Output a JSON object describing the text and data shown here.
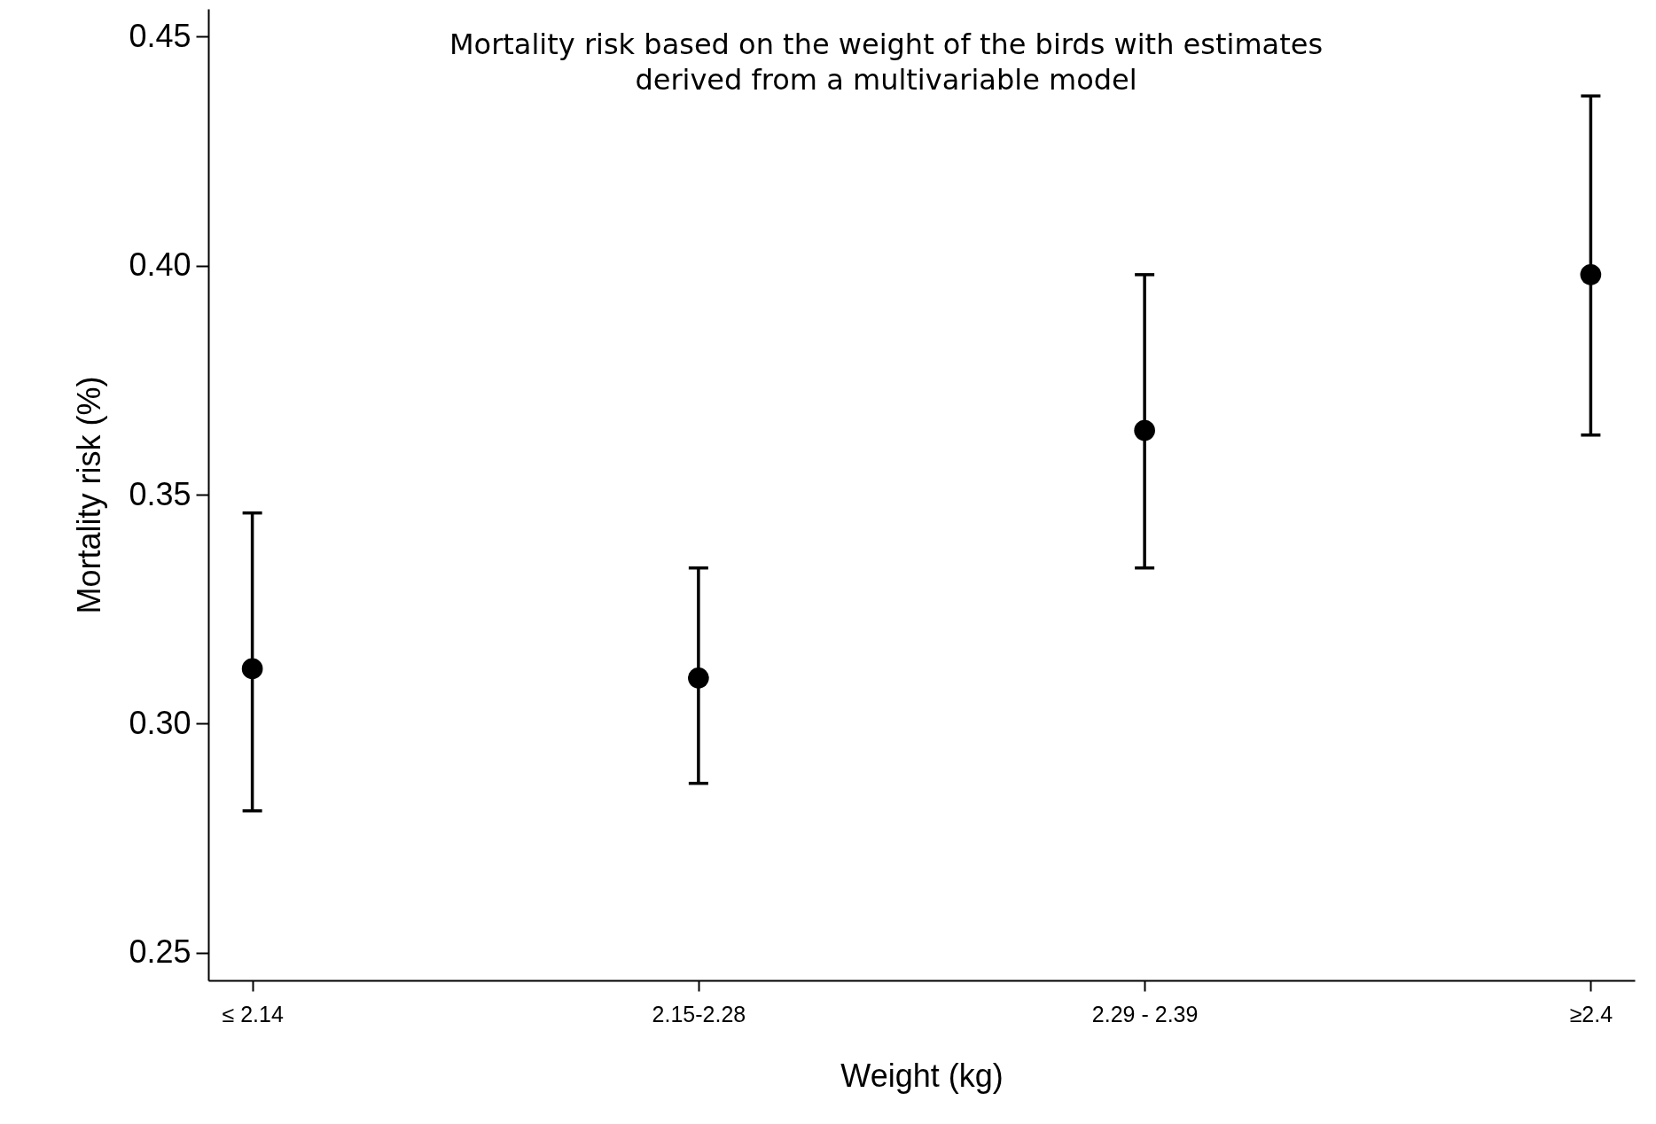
{
  "chart_data": {
    "type": "scatter",
    "title": "Mortality risk based on the weight of the birds with estimates\nderived from a multivariable model",
    "xlabel": "Weight (kg)",
    "ylabel": "Mortality risk (%)",
    "categories": [
      "≤ 2.14",
      "2.15-2.28",
      "2.29 - 2.39",
      "≥2.4"
    ],
    "series": [
      {
        "color": "#000000",
        "values": [
          0.312,
          0.31,
          0.364,
          0.398
        ],
        "errors": [
          [
            0.281,
            0.346
          ],
          [
            0.287,
            0.334
          ],
          [
            0.334,
            0.398
          ],
          [
            0.363,
            0.437
          ]
        ]
      }
    ],
    "ylim": [
      0.244,
      0.456
    ],
    "yticks": [
      0.25,
      {
        "value": 0.3,
        "label": "0.30"
      },
      0.35,
      {
        "value": 0.4,
        "label": "0.40"
      },
      0.45
    ],
    "grid": false,
    "marker": "circle"
  }
}
